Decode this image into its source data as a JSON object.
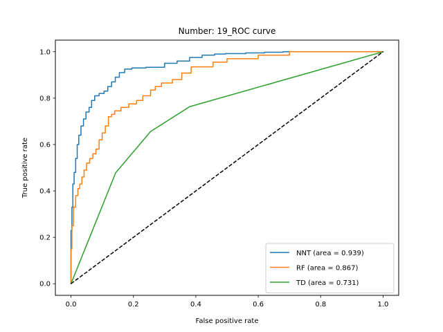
{
  "chart_data": {
    "type": "line",
    "title": "Number: 19_ROC curve",
    "xlabel": "False positive rate",
    "ylabel": "True positive rate",
    "xlim": [
      -0.05,
      1.05
    ],
    "ylim": [
      -0.05,
      1.05
    ],
    "xticks": [
      0.0,
      0.2,
      0.4,
      0.6,
      0.8,
      1.0
    ],
    "yticks": [
      0.0,
      0.2,
      0.4,
      0.6,
      0.8,
      1.0
    ],
    "xtick_labels": [
      "0.0",
      "0.2",
      "0.4",
      "0.6",
      "0.8",
      "1.0"
    ],
    "ytick_labels": [
      "0.0",
      "0.2",
      "0.4",
      "0.6",
      "0.8",
      "1.0"
    ],
    "grid": false,
    "legend_position": "bottom-right",
    "series": [
      {
        "name": "NNT (area = 0.939)",
        "color": "#1f77b4",
        "x": [
          0.0,
          0.0,
          0.003,
          0.003,
          0.006,
          0.006,
          0.01,
          0.01,
          0.015,
          0.015,
          0.02,
          0.02,
          0.025,
          0.025,
          0.032,
          0.032,
          0.04,
          0.04,
          0.048,
          0.048,
          0.058,
          0.058,
          0.066,
          0.066,
          0.076,
          0.076,
          0.09,
          0.09,
          0.106,
          0.106,
          0.118,
          0.118,
          0.13,
          0.13,
          0.142,
          0.142,
          0.155,
          0.155,
          0.172,
          0.172,
          0.195,
          0.195,
          0.24,
          0.24,
          0.3,
          0.3,
          0.34,
          0.34,
          0.38,
          0.38,
          0.42,
          0.42,
          0.46,
          0.46,
          0.495,
          0.495,
          0.56,
          0.56,
          0.62,
          0.62,
          0.68,
          0.68,
          0.8,
          0.8,
          1.0
        ],
        "y": [
          0.0,
          0.23,
          0.23,
          0.33,
          0.33,
          0.43,
          0.43,
          0.48,
          0.48,
          0.54,
          0.54,
          0.6,
          0.6,
          0.64,
          0.64,
          0.68,
          0.68,
          0.71,
          0.71,
          0.74,
          0.74,
          0.76,
          0.76,
          0.79,
          0.79,
          0.81,
          0.81,
          0.82,
          0.82,
          0.83,
          0.83,
          0.85,
          0.85,
          0.87,
          0.87,
          0.89,
          0.89,
          0.91,
          0.91,
          0.925,
          0.925,
          0.93,
          0.93,
          0.933,
          0.933,
          0.95,
          0.95,
          0.96,
          0.96,
          0.975,
          0.975,
          0.985,
          0.985,
          0.99,
          0.99,
          0.992,
          0.992,
          0.995,
          0.995,
          0.998,
          0.998,
          1.0,
          1.0,
          1.0,
          1.0
        ]
      },
      {
        "name": "RF (area = 0.867)",
        "color": "#ff7f0e",
        "x": [
          0.0,
          0.0,
          0.003,
          0.003,
          0.008,
          0.008,
          0.015,
          0.015,
          0.022,
          0.022,
          0.028,
          0.028,
          0.035,
          0.035,
          0.042,
          0.042,
          0.05,
          0.05,
          0.06,
          0.06,
          0.07,
          0.07,
          0.08,
          0.08,
          0.09,
          0.09,
          0.1,
          0.1,
          0.11,
          0.11,
          0.12,
          0.12,
          0.13,
          0.13,
          0.14,
          0.14,
          0.16,
          0.16,
          0.185,
          0.185,
          0.21,
          0.21,
          0.23,
          0.23,
          0.255,
          0.255,
          0.27,
          0.27,
          0.29,
          0.29,
          0.325,
          0.325,
          0.355,
          0.355,
          0.385,
          0.385,
          0.455,
          0.455,
          0.5,
          0.5,
          0.6,
          0.6,
          0.7,
          0.7,
          1.0
        ],
        "y": [
          0.0,
          0.15,
          0.15,
          0.25,
          0.25,
          0.33,
          0.33,
          0.38,
          0.38,
          0.41,
          0.41,
          0.43,
          0.43,
          0.46,
          0.46,
          0.49,
          0.49,
          0.52,
          0.52,
          0.54,
          0.54,
          0.56,
          0.56,
          0.58,
          0.58,
          0.62,
          0.62,
          0.65,
          0.65,
          0.68,
          0.68,
          0.72,
          0.72,
          0.73,
          0.73,
          0.745,
          0.745,
          0.76,
          0.76,
          0.775,
          0.775,
          0.79,
          0.79,
          0.81,
          0.81,
          0.835,
          0.835,
          0.85,
          0.85,
          0.865,
          0.865,
          0.88,
          0.88,
          0.908,
          0.908,
          0.935,
          0.935,
          0.955,
          0.955,
          0.97,
          0.97,
          0.985,
          0.985,
          1.0,
          1.0
        ]
      },
      {
        "name": "TD (area = 0.731)",
        "color": "#2ca02c",
        "x": [
          0.0,
          0.143,
          0.255,
          0.38,
          1.0
        ],
        "y": [
          0.0,
          0.478,
          0.656,
          0.763,
          1.0
        ]
      },
      {
        "name": "",
        "color": "#000000",
        "dashed": true,
        "x": [
          0.0,
          1.0
        ],
        "y": [
          0.0,
          1.0
        ]
      }
    ]
  }
}
